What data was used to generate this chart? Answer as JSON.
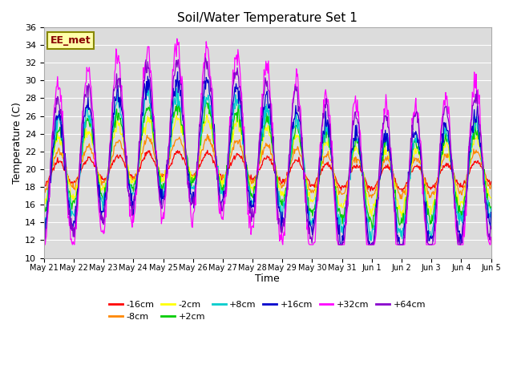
{
  "title": "Soil/Water Temperature Set 1",
  "xlabel": "Time",
  "ylabel": "Temperature (C)",
  "ylim": [
    10,
    36
  ],
  "yticks": [
    10,
    12,
    14,
    16,
    18,
    20,
    22,
    24,
    26,
    28,
    30,
    32,
    34,
    36
  ],
  "annotation": "EE_met",
  "bg_color": "#dcdcdc",
  "grid_color": "#ffffff",
  "xtick_labels": [
    "May 21",
    "May 22",
    "May 23",
    "May 24",
    "May 25",
    "May 26",
    "May 27",
    "May 28",
    "May 29",
    "May 30",
    "May 31",
    "Jun 1",
    "Jun 2",
    "Jun 3",
    "Jun 4",
    "Jun 5"
  ],
  "n_days": 15,
  "samples_per_day": 48,
  "series": [
    {
      "label": "-16cm",
      "color": "#ff0000",
      "daily_amp": 1.3,
      "slow_amp": 0.8,
      "base": 19.8,
      "phase": 0.0,
      "noise": 0.15
    },
    {
      "label": "-8cm",
      "color": "#ff8800",
      "daily_amp": 2.2,
      "slow_amp": 1.2,
      "base": 20.2,
      "phase": 0.05,
      "noise": 0.2
    },
    {
      "label": "-2cm",
      "color": "#ffff00",
      "daily_amp": 3.5,
      "slow_amp": 1.8,
      "base": 20.5,
      "phase": 0.08,
      "noise": 0.3
    },
    {
      "label": "+2cm",
      "color": "#00cc00",
      "daily_amp": 4.5,
      "slow_amp": 2.2,
      "base": 20.5,
      "phase": 0.1,
      "noise": 0.4
    },
    {
      "label": "+8cm",
      "color": "#00cccc",
      "daily_amp": 5.5,
      "slow_amp": 2.5,
      "base": 20.5,
      "phase": 0.12,
      "noise": 0.5
    },
    {
      "label": "+16cm",
      "color": "#0000cc",
      "daily_amp": 6.5,
      "slow_amp": 3.0,
      "base": 20.5,
      "phase": 0.15,
      "noise": 0.6
    },
    {
      "label": "+32cm",
      "color": "#ff00ff",
      "daily_amp": 9.5,
      "slow_amp": 3.5,
      "base": 21.0,
      "phase": 0.18,
      "noise": 0.7
    },
    {
      "label": "+64cm",
      "color": "#8800cc",
      "daily_amp": 8.0,
      "slow_amp": 3.0,
      "base": 21.0,
      "phase": 0.22,
      "noise": 0.5
    }
  ]
}
